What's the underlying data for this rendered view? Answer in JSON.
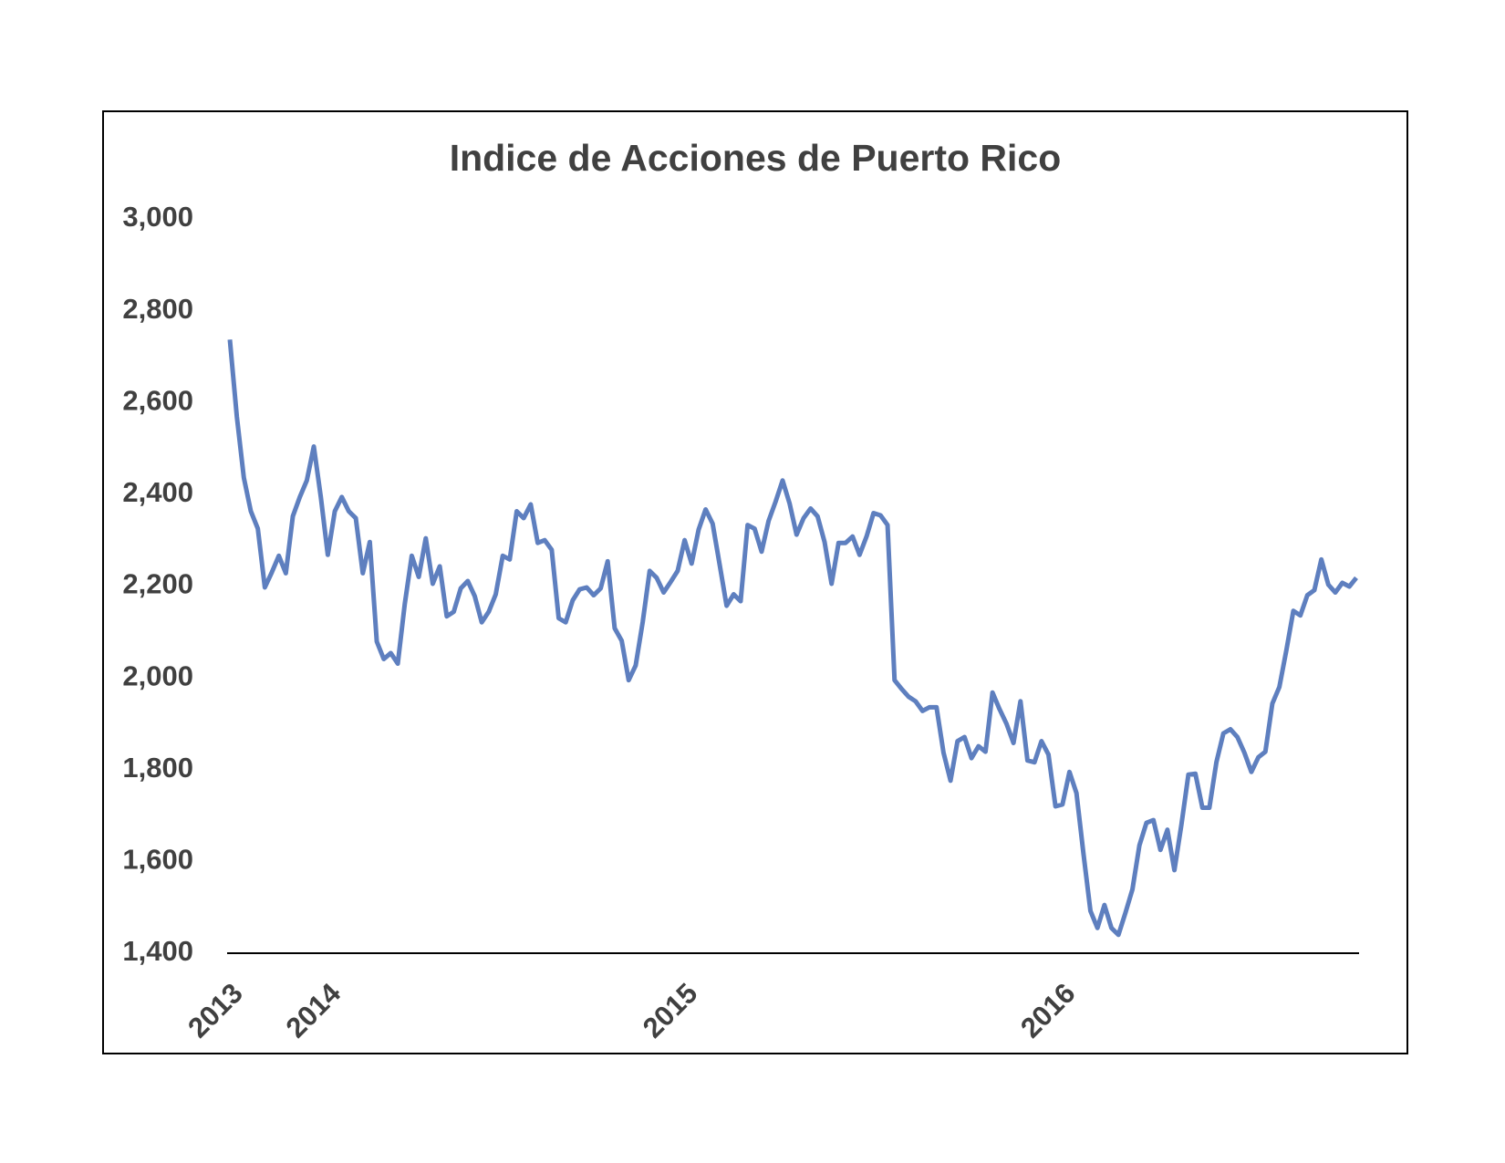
{
  "chart_data": {
    "type": "line",
    "title": "Indice de Acciones de Puerto Rico",
    "categories": [
      "2013",
      null,
      null,
      null,
      null,
      null,
      null,
      null,
      null,
      null,
      null,
      null,
      null,
      null,
      "2014",
      null,
      null,
      null,
      null,
      null,
      null,
      null,
      null,
      null,
      null,
      null,
      null,
      null,
      null,
      null,
      null,
      null,
      null,
      null,
      null,
      null,
      null,
      null,
      null,
      null,
      null,
      null,
      null,
      null,
      null,
      null,
      null,
      null,
      null,
      null,
      null,
      null,
      null,
      null,
      null,
      null,
      null,
      null,
      null,
      null,
      null,
      null,
      null,
      null,
      null,
      "2015",
      null,
      null,
      null,
      null,
      null,
      null,
      null,
      null,
      null,
      null,
      null,
      null,
      null,
      null,
      null,
      null,
      null,
      null,
      null,
      null,
      null,
      null,
      null,
      null,
      null,
      null,
      null,
      null,
      null,
      null,
      null,
      null,
      null,
      null,
      null,
      null,
      null,
      null,
      null,
      null,
      null,
      null,
      null,
      null,
      null,
      null,
      null,
      null,
      null,
      null,
      null,
      null,
      null,
      "2016",
      null,
      null,
      null,
      null,
      null,
      null,
      null,
      null,
      null,
      null,
      null,
      null,
      null,
      null,
      null,
      null,
      null,
      null,
      null,
      null,
      null,
      null,
      null,
      null,
      null,
      null,
      null,
      null,
      null,
      null,
      null,
      null,
      null,
      null,
      null,
      null,
      null,
      null,
      null,
      null,
      null,
      null
    ],
    "series": [
      {
        "name": "Indice de Acciones de Puerto Rico",
        "color": "#5e7fbf",
        "values": [
          2737,
          2569,
          2436,
          2363,
          2325,
          2197,
          2230,
          2266,
          2228,
          2352,
          2394,
          2430,
          2504,
          2394,
          2268,
          2363,
          2394,
          2363,
          2348,
          2228,
          2296,
          2079,
          2041,
          2054,
          2031,
          2161,
          2266,
          2220,
          2304,
          2205,
          2243,
          2134,
          2144,
          2195,
          2211,
          2178,
          2121,
          2144,
          2182,
          2266,
          2258,
          2363,
          2348,
          2378,
          2294,
          2300,
          2279,
          2130,
          2121,
          2169,
          2193,
          2197,
          2180,
          2195,
          2254,
          2108,
          2081,
          1995,
          2027,
          2121,
          2233,
          2218,
          2186,
          2209,
          2233,
          2300,
          2249,
          2323,
          2367,
          2336,
          2247,
          2157,
          2182,
          2167,
          2333,
          2325,
          2275,
          2342,
          2384,
          2430,
          2380,
          2312,
          2348,
          2369,
          2352,
          2296,
          2205,
          2294,
          2294,
          2308,
          2268,
          2308,
          2359,
          2354,
          2333,
          1995,
          1976,
          1959,
          1949,
          1928,
          1936,
          1936,
          1837,
          1776,
          1862,
          1871,
          1825,
          1851,
          1839,
          1968,
          1932,
          1900,
          1858,
          1949,
          1820,
          1816,
          1862,
          1833,
          1720,
          1724,
          1795,
          1749,
          1617,
          1492,
          1455,
          1505,
          1455,
          1440,
          1488,
          1539,
          1635,
          1684,
          1690,
          1625,
          1669,
          1581,
          1680,
          1789,
          1791,
          1717,
          1717,
          1816,
          1879,
          1888,
          1871,
          1837,
          1795,
          1827,
          1839,
          1944,
          1980,
          2060,
          2146,
          2136,
          2180,
          2191,
          2258,
          2203,
          2186,
          2207,
          2199,
          2218
        ]
      }
    ],
    "ylim": [
      1400,
      3000
    ],
    "yticks": [
      {
        "value": 1400,
        "label": "1,400"
      },
      {
        "value": 1600,
        "label": "1,600"
      },
      {
        "value": 1800,
        "label": "1,800"
      },
      {
        "value": 2000,
        "label": "2,000"
      },
      {
        "value": 2200,
        "label": "2,200"
      },
      {
        "value": 2400,
        "label": "2,400"
      },
      {
        "value": 2600,
        "label": "2,600"
      },
      {
        "value": 2800,
        "label": "2,800"
      },
      {
        "value": 3000,
        "label": "3,000"
      }
    ],
    "grid": false
  }
}
